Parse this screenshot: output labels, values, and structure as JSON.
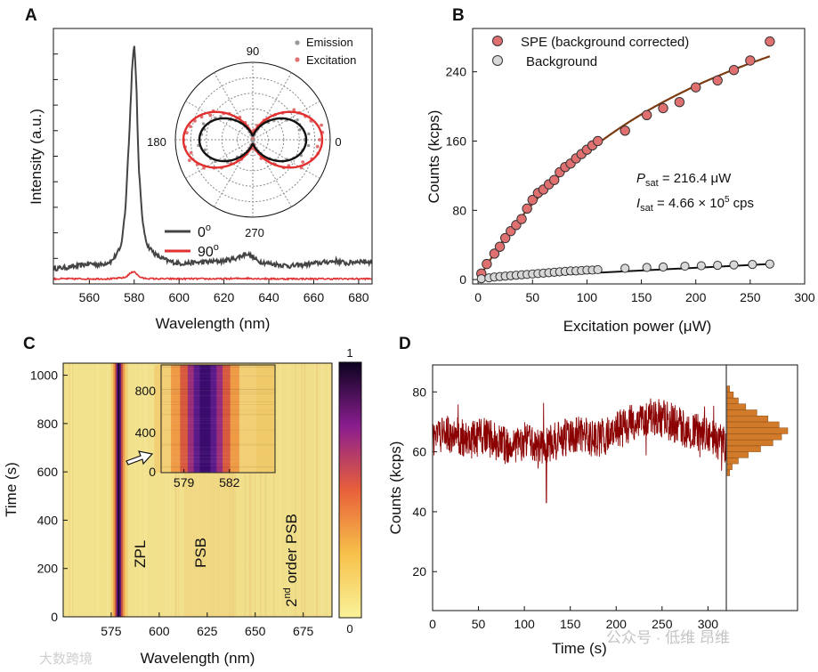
{
  "panels": {
    "a": "A",
    "b": "B",
    "c": "C",
    "d": "D"
  },
  "watermark": {
    "left": "大数跨境",
    "right": "公众号 · 低维 昂维"
  },
  "chart_data": [
    {
      "id": "A",
      "type": "line",
      "title": "",
      "xlabel": "Wavelength (nm)",
      "ylabel": "Intensity (a.u.)",
      "xlim": [
        544,
        686
      ],
      "ylim": [
        0,
        1
      ],
      "xticks": [
        560,
        580,
        600,
        620,
        640,
        660,
        680
      ],
      "series": [
        {
          "name": "0o",
          "label_main": "0",
          "label_sup": "o",
          "color": "#444444",
          "x": [
            544,
            550,
            555,
            560,
            565,
            570,
            574,
            576,
            578,
            579,
            580,
            581,
            582,
            584,
            586,
            590,
            595,
            600,
            610,
            620,
            625,
            628,
            630,
            632,
            635,
            640,
            650,
            660,
            670,
            675,
            680,
            686
          ],
          "y": [
            0.06,
            0.065,
            0.07,
            0.08,
            0.075,
            0.09,
            0.14,
            0.28,
            0.62,
            0.84,
            0.94,
            0.78,
            0.45,
            0.22,
            0.15,
            0.11,
            0.09,
            0.08,
            0.085,
            0.09,
            0.1,
            0.11,
            0.12,
            0.11,
            0.09,
            0.08,
            0.07,
            0.08,
            0.09,
            0.08,
            0.09,
            0.085
          ]
        },
        {
          "name": "90o",
          "label_main": "90",
          "label_sup": "o",
          "color": "#e03030",
          "x": [
            544,
            560,
            570,
            576,
            578,
            580,
            582,
            584,
            590,
            600,
            620,
            630,
            640,
            660,
            686
          ],
          "y": [
            0.02,
            0.02,
            0.02,
            0.025,
            0.04,
            0.05,
            0.03,
            0.022,
            0.02,
            0.02,
            0.02,
            0.022,
            0.02,
            0.02,
            0.02
          ]
        }
      ],
      "inset": {
        "type": "polar",
        "angle_labels": {
          "deg90": "90",
          "deg180": "180",
          "deg0": "0",
          "deg270": "270"
        },
        "legend": [
          {
            "name": "Emission",
            "color": "#999999"
          },
          {
            "name": "Excitation",
            "color": "#e07070"
          }
        ]
      }
    },
    {
      "id": "B",
      "type": "scatter",
      "xlabel": "Excitation power (μW)",
      "ylabel": "Counts (kcps)",
      "xlim": [
        -5,
        300
      ],
      "ylim": [
        -5,
        290
      ],
      "xticks": [
        0,
        50,
        100,
        150,
        200,
        250,
        300
      ],
      "yticks": [
        0,
        80,
        160,
        240
      ],
      "series": [
        {
          "name": "SPE (background corrected)",
          "color": "#e07070",
          "x": [
            3,
            8,
            15,
            20,
            25,
            30,
            35,
            40,
            45,
            50,
            55,
            60,
            65,
            70,
            75,
            80,
            85,
            90,
            95,
            100,
            105,
            110,
            135,
            155,
            170,
            185,
            200,
            220,
            235,
            250,
            268
          ],
          "y": [
            7,
            18,
            30,
            38,
            48,
            56,
            63,
            70,
            82,
            92,
            100,
            104,
            110,
            115,
            124,
            130,
            134,
            140,
            145,
            150,
            155,
            160,
            172,
            190,
            198,
            205,
            222,
            230,
            242,
            253,
            275
          ]
        },
        {
          "name": "Background",
          "color": "#d8d8d8",
          "x": [
            3,
            10,
            15,
            20,
            25,
            30,
            35,
            40,
            45,
            50,
            55,
            60,
            65,
            70,
            75,
            80,
            85,
            90,
            95,
            100,
            105,
            110,
            135,
            155,
            170,
            190,
            205,
            220,
            235,
            252,
            268
          ],
          "y": [
            1,
            2,
            3,
            3.5,
            4,
            4.5,
            5,
            5.5,
            6,
            6.5,
            7,
            7.5,
            8,
            8.5,
            9,
            9.5,
            10,
            10,
            10.5,
            11,
            11,
            11.5,
            13,
            14,
            14.5,
            15.5,
            16,
            16.5,
            17,
            17.5,
            18
          ]
        }
      ],
      "fit": {
        "type": "saturation",
        "psat": 216.4,
        "isat_kcps": 466
      },
      "annotations": {
        "psat_sym": "P",
        "psat_sub": "sat",
        "psat_val": " = 216.4 μW",
        "isat_sym": "I",
        "isat_sub": "sat",
        "isat_val": " = 4.66 × 10",
        "isat_exp": "5",
        "isat_unit": " cps"
      }
    },
    {
      "id": "C",
      "type": "heatmap",
      "xlabel": "Wavelength (nm)",
      "ylabel": "Time (s)",
      "xlim": [
        550,
        690
      ],
      "ylim": [
        0,
        1050
      ],
      "xticks": [
        575,
        600,
        625,
        650,
        675
      ],
      "yticks": [
        0,
        200,
        400,
        600,
        800,
        1000
      ],
      "features": {
        "zpl": {
          "label": "ZPL",
          "wavelength": 579
        },
        "psb": {
          "label": "PSB",
          "wavelength": 624
        },
        "psb2": {
          "label_pre": "2",
          "label_sup": "nd",
          "label_post": " order PSB",
          "wavelength": 665
        }
      },
      "colorbar": {
        "max": "1",
        "min": "0"
      },
      "inset": {
        "xticks": [
          "579",
          "582"
        ],
        "yticks": [
          "800",
          "400",
          "0"
        ],
        "xrange": [
          577.5,
          585.0
        ],
        "peak": 580.4
      }
    },
    {
      "id": "D",
      "type": "line",
      "xlabel": "Time (s)",
      "ylabel": "Counts (kcps)",
      "xlim": [
        0,
        320
      ],
      "ylim": [
        7,
        89
      ],
      "xticks": [
        0,
        50,
        100,
        150,
        200,
        250,
        300
      ],
      "yticks": [
        20,
        40,
        60,
        80
      ],
      "color": "#8b0000",
      "trend_x": [
        0,
        20,
        40,
        60,
        80,
        100,
        120,
        140,
        160,
        180,
        200,
        220,
        240,
        250,
        260,
        280,
        300,
        320
      ],
      "trend_y": [
        65,
        66,
        64,
        65,
        62,
        63,
        62,
        64,
        66,
        64,
        67,
        70,
        72,
        71,
        70,
        67,
        65,
        62
      ],
      "outlier_x": 124,
      "outlier_y": 43,
      "histogram": {
        "bins": [
          53,
          55,
          57,
          59,
          61,
          63,
          65,
          67,
          69,
          71,
          73,
          75,
          77,
          79,
          81
        ],
        "counts": [
          2,
          4,
          9,
          17,
          27,
          37,
          44,
          49,
          42,
          33,
          24,
          15,
          9,
          5,
          2
        ],
        "color": "#d07a2a"
      }
    }
  ]
}
